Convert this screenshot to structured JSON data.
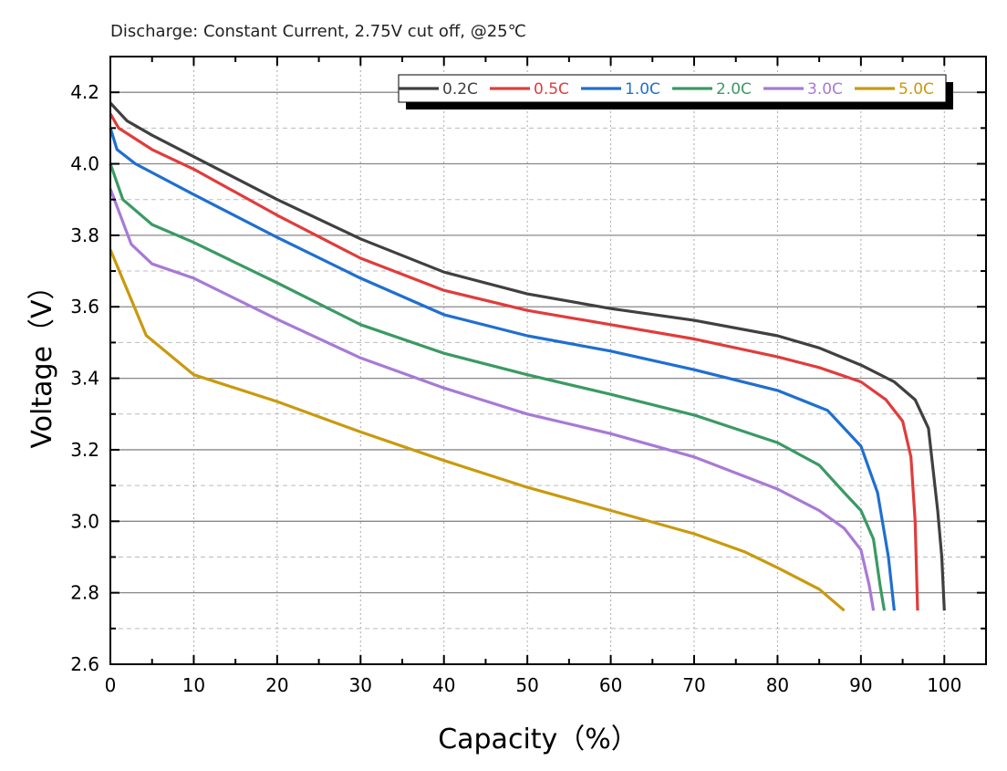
{
  "chart_data": {
    "type": "line",
    "title": "Discharge: Constant Current, 2.75V cut off, @25℃",
    "xlabel": "Capacity（%）",
    "ylabel": "Voltage（V）",
    "xlim": [
      0,
      105
    ],
    "ylim": [
      2.6,
      4.3
    ],
    "xticks": [
      0,
      10,
      20,
      30,
      40,
      50,
      60,
      70,
      80,
      90,
      100
    ],
    "yticks": [
      2.6,
      2.8,
      3.0,
      3.2,
      3.4,
      3.6,
      3.8,
      4.0,
      4.2
    ],
    "ytick_labels": [
      "2.6",
      "2.8",
      "3.0",
      "3.2",
      "3.4",
      "3.6",
      "3.8",
      "4.0",
      "4.2"
    ],
    "grid": "major horizontal solid, minor horizontal dashed, vertical dotted",
    "legend_placement": "top-right",
    "series": [
      {
        "name": "0.2C",
        "color": "#404040",
        "points": [
          [
            0,
            4.17
          ],
          [
            2,
            4.12
          ],
          [
            5,
            4.08
          ],
          [
            10,
            4.02
          ],
          [
            20,
            3.9
          ],
          [
            30,
            3.79
          ],
          [
            40,
            3.697
          ],
          [
            50,
            3.636
          ],
          [
            60,
            3.595
          ],
          [
            70,
            3.562
          ],
          [
            80,
            3.519
          ],
          [
            85,
            3.485
          ],
          [
            90,
            3.437
          ],
          [
            94,
            3.39
          ],
          [
            96.5,
            3.34
          ],
          [
            98.1,
            3.26
          ],
          [
            99.2,
            3.03
          ],
          [
            99.7,
            2.9
          ],
          [
            100,
            2.75
          ]
        ]
      },
      {
        "name": "0.5C",
        "color": "#e03c3c",
        "points": [
          [
            0,
            4.14
          ],
          [
            1,
            4.1
          ],
          [
            5,
            4.04
          ],
          [
            10,
            3.985
          ],
          [
            20,
            3.856
          ],
          [
            30,
            3.736
          ],
          [
            40,
            3.646
          ],
          [
            50,
            3.59
          ],
          [
            60,
            3.55
          ],
          [
            70,
            3.51
          ],
          [
            80,
            3.46
          ],
          [
            85,
            3.43
          ],
          [
            90,
            3.39
          ],
          [
            93,
            3.34
          ],
          [
            95,
            3.28
          ],
          [
            96,
            3.18
          ],
          [
            96.5,
            3.0
          ],
          [
            96.8,
            2.75
          ]
        ]
      },
      {
        "name": "1.0C",
        "color": "#1f6fd0",
        "points": [
          [
            0,
            4.1
          ],
          [
            0.8,
            4.04
          ],
          [
            3,
            4.0
          ],
          [
            10,
            3.914
          ],
          [
            20,
            3.794
          ],
          [
            30,
            3.68
          ],
          [
            40,
            3.578
          ],
          [
            50,
            3.519
          ],
          [
            60,
            3.476
          ],
          [
            70,
            3.424
          ],
          [
            80,
            3.366
          ],
          [
            86,
            3.31
          ],
          [
            90,
            3.21
          ],
          [
            92,
            3.08
          ],
          [
            93.3,
            2.9
          ],
          [
            94,
            2.75
          ]
        ]
      },
      {
        "name": "2.0C",
        "color": "#3a9a64",
        "points": [
          [
            0,
            4.0
          ],
          [
            1.5,
            3.9
          ],
          [
            5,
            3.83
          ],
          [
            10,
            3.78
          ],
          [
            20,
            3.667
          ],
          [
            30,
            3.55
          ],
          [
            40,
            3.47
          ],
          [
            50,
            3.41
          ],
          [
            60,
            3.355
          ],
          [
            70,
            3.297
          ],
          [
            80,
            3.22
          ],
          [
            85,
            3.157
          ],
          [
            88,
            3.08
          ],
          [
            90,
            3.03
          ],
          [
            91.5,
            2.95
          ],
          [
            92.3,
            2.82
          ],
          [
            92.8,
            2.75
          ]
        ]
      },
      {
        "name": "3.0C",
        "color": "#a77ad6",
        "points": [
          [
            0,
            3.93
          ],
          [
            2.5,
            3.775
          ],
          [
            5,
            3.72
          ],
          [
            10,
            3.68
          ],
          [
            20,
            3.565
          ],
          [
            30,
            3.457
          ],
          [
            40,
            3.373
          ],
          [
            50,
            3.3
          ],
          [
            60,
            3.245
          ],
          [
            70,
            3.18
          ],
          [
            80,
            3.09
          ],
          [
            85,
            3.03
          ],
          [
            88,
            2.98
          ],
          [
            90,
            2.92
          ],
          [
            91,
            2.82
          ],
          [
            91.5,
            2.75
          ]
        ]
      },
      {
        "name": "5.0C",
        "color": "#c99a0e",
        "points": [
          [
            0,
            3.76
          ],
          [
            4.3,
            3.52
          ],
          [
            8.7,
            3.435
          ],
          [
            10,
            3.41
          ],
          [
            20,
            3.335
          ],
          [
            30,
            3.25
          ],
          [
            40,
            3.17
          ],
          [
            50,
            3.095
          ],
          [
            60,
            3.03
          ],
          [
            70,
            2.965
          ],
          [
            76,
            2.915
          ],
          [
            80,
            2.87
          ],
          [
            85,
            2.81
          ],
          [
            88,
            2.75
          ]
        ]
      }
    ]
  }
}
